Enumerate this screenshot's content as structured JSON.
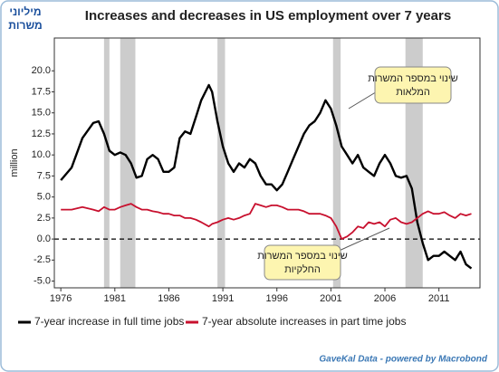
{
  "chart_data": {
    "type": "line",
    "title": "Increases and decreases in US employment over 7 years",
    "unit_label": [
      "מיליוני",
      "משרות"
    ],
    "ylabel": "million",
    "footer": "GaveKal Data - powered by Macrobond",
    "annotations": [
      [
        "שינוי במספר המשרות",
        "המלאות"
      ],
      [
        "שינוי במספר המשרות",
        "החלקיות"
      ]
    ],
    "x": [
      1976,
      1977,
      1978,
      1979,
      1979.5,
      1980,
      1980.5,
      1981,
      1981.5,
      1982,
      1982.5,
      1983,
      1983.5,
      1984,
      1984.5,
      1985,
      1985.5,
      1986,
      1986.5,
      1987,
      1987.5,
      1988,
      1988.5,
      1989,
      1989.7,
      1990,
      1990.5,
      1991,
      1991.5,
      1992,
      1992.5,
      1993,
      1993.5,
      1994,
      1994.5,
      1995,
      1995.5,
      1996,
      1996.5,
      1997,
      1997.5,
      1998,
      1998.5,
      1999,
      1999.5,
      2000,
      2000.5,
      2001,
      2001.5,
      2002,
      2002.5,
      2003,
      2003.5,
      2004,
      2004.5,
      2005,
      2005.5,
      2006,
      2006.5,
      2007,
      2007.5,
      2008,
      2008.5,
      2009,
      2009.5,
      2010,
      2010.5,
      2011,
      2011.5,
      2012,
      2012.5,
      2013,
      2013.5,
      2014
    ],
    "series": [
      {
        "name": "7-year increase in full time jobs",
        "color": "#000000",
        "values": [
          7.0,
          8.5,
          12.0,
          13.8,
          14.0,
          12.5,
          10.5,
          10.0,
          10.3,
          10.0,
          9.0,
          7.3,
          7.5,
          9.5,
          10.0,
          9.5,
          8.0,
          8.0,
          8.5,
          12.0,
          12.8,
          12.5,
          14.5,
          16.5,
          18.3,
          17.5,
          14.0,
          11.0,
          9.0,
          8.0,
          9.0,
          8.5,
          9.5,
          9.0,
          7.5,
          6.5,
          6.5,
          5.8,
          6.5,
          8.0,
          9.5,
          11.0,
          12.5,
          13.5,
          14.0,
          15.0,
          16.5,
          15.5,
          13.5,
          11.0,
          10.0,
          9.0,
          10.0,
          8.5,
          8.0,
          7.5,
          9.0,
          10.0,
          9.0,
          7.5,
          7.3,
          7.5,
          6.0,
          2.0,
          -0.5,
          -2.5,
          -2.0,
          -2.0,
          -1.5,
          -2.0,
          -2.5,
          -1.5,
          -3.0,
          -3.5
        ]
      },
      {
        "name": "7-year absolute increases in part time jobs",
        "color": "#c8102e",
        "values": [
          3.5,
          3.5,
          3.8,
          3.5,
          3.3,
          3.8,
          3.5,
          3.5,
          3.8,
          4.0,
          4.2,
          3.8,
          3.5,
          3.5,
          3.3,
          3.2,
          3.0,
          3.0,
          2.8,
          2.8,
          2.5,
          2.5,
          2.3,
          2.0,
          1.5,
          1.8,
          2.0,
          2.3,
          2.5,
          2.3,
          2.5,
          2.8,
          3.0,
          4.2,
          4.0,
          3.8,
          4.0,
          4.0,
          3.8,
          3.5,
          3.5,
          3.5,
          3.3,
          3.0,
          3.0,
          3.0,
          2.8,
          2.5,
          1.5,
          0.0,
          0.3,
          0.8,
          1.5,
          1.3,
          2.0,
          1.8,
          2.0,
          1.5,
          2.3,
          2.5,
          2.0,
          1.8,
          2.0,
          2.5,
          3.0,
          3.3,
          3.0,
          3.0,
          3.2,
          2.8,
          2.5,
          3.0,
          2.8,
          3.0
        ]
      }
    ],
    "recessions": [
      [
        1980.0,
        1980.5
      ],
      [
        1981.5,
        1982.9
      ],
      [
        1990.5,
        1991.2
      ],
      [
        2001.2,
        2001.9
      ],
      [
        2007.9,
        2009.5
      ]
    ],
    "recession_color": "#cccccc",
    "reference_line": 0,
    "xlim": [
      1975.4,
      2014.8
    ],
    "ylim": [
      -5.8,
      23.9
    ],
    "xticks": [
      1976,
      1981,
      1986,
      1991,
      1996,
      2001,
      2006,
      2011
    ],
    "yticks": [
      {
        "value": 20,
        "label": "20.0"
      },
      17.5,
      {
        "value": 15,
        "label": "15.0"
      },
      12.5,
      {
        "value": 10,
        "label": "10.0"
      },
      7.5,
      {
        "value": 5,
        "label": "5.0"
      },
      2.5,
      {
        "value": 0,
        "label": "0.0"
      },
      -2.5,
      {
        "value": -5,
        "label": "-5.0"
      }
    ]
  }
}
